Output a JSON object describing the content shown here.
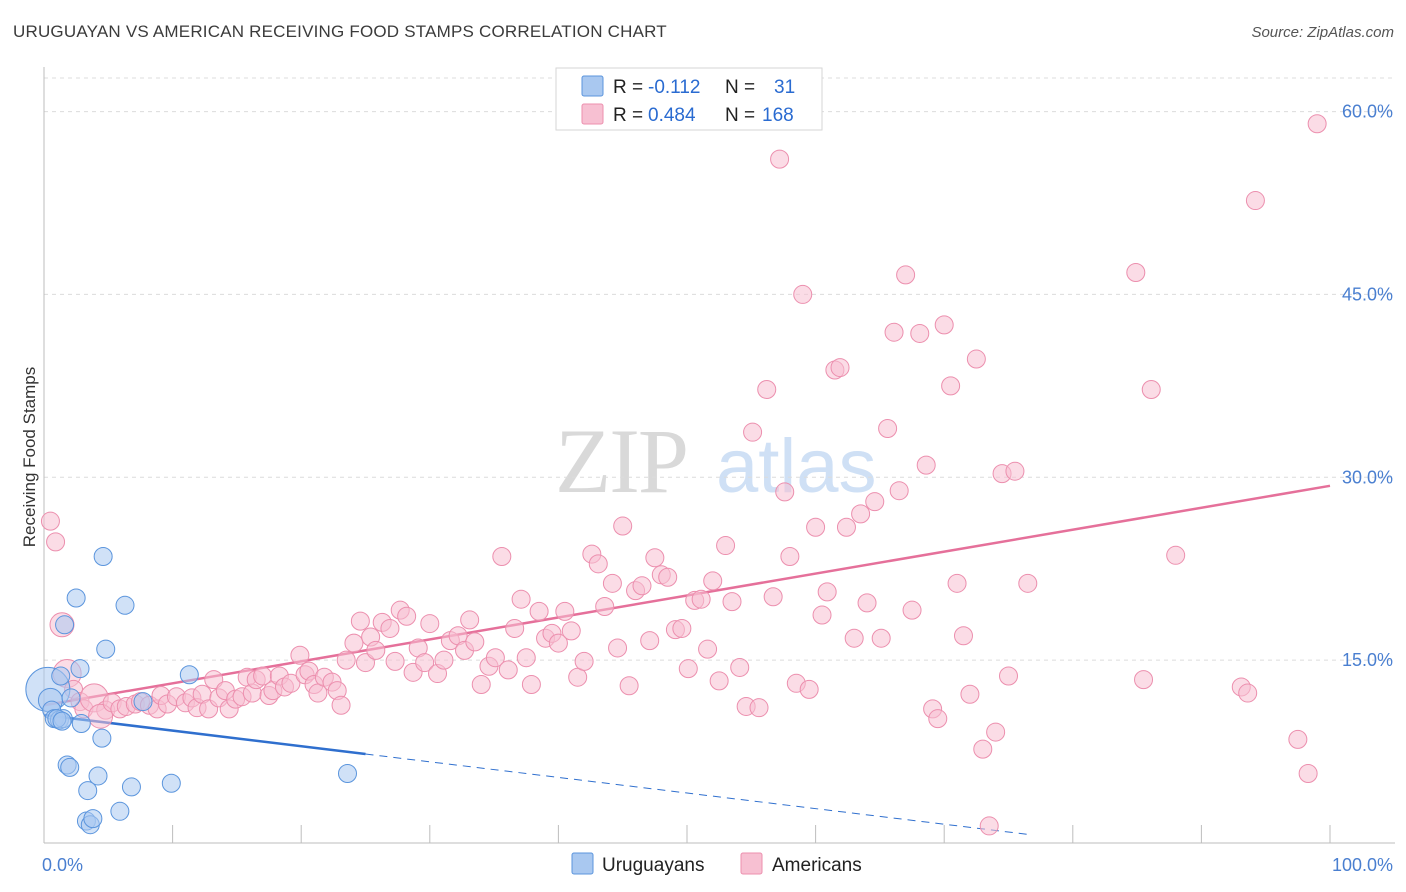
{
  "title": "URUGUAYAN VS AMERICAN RECEIVING FOOD STAMPS CORRELATION CHART",
  "source": "Source: ZipAtlas.com",
  "watermark": {
    "zip": "ZIP",
    "atlas": "atlas"
  },
  "colors": {
    "uruguayan_fill": "#a9c8f0",
    "uruguayan_stroke": "#5b95dd",
    "uruguayan_line": "#2f6fce",
    "american_fill": "#f7c0d2",
    "american_stroke": "#ec8fae",
    "american_line": "#e5709a",
    "tick_text": "#4a7fd0",
    "grid": "#dcdcdc"
  },
  "legend": {
    "rows": [
      {
        "r_label": "R =",
        "r_value": "-0.112",
        "n_label": "N =",
        "n_value": "31"
      },
      {
        "r_label": "R =",
        "r_value": "0.484",
        "n_label": "N =",
        "n_value": "168"
      }
    ]
  },
  "bottom_legend": {
    "uruguayans": "Uruguayans",
    "americans": "Americans"
  },
  "chart_data": {
    "type": "scatter",
    "title": "URUGUAYAN VS AMERICAN RECEIVING FOOD STAMPS CORRELATION CHART",
    "xlabel": "",
    "ylabel": "Receiving Food Stamps",
    "xlim": [
      0,
      100
    ],
    "ylim": [
      0,
      63
    ],
    "x_tick_labels": [
      "0.0%",
      "100.0%"
    ],
    "y_ticks": [
      15,
      30,
      45,
      60
    ],
    "y_tick_labels": [
      "15.0%",
      "30.0%",
      "45.0%",
      "60.0%"
    ],
    "grid": true,
    "legend_position": "top-center",
    "series": [
      {
        "name": "Uruguayans",
        "r": -0.112,
        "n": 31,
        "trend": {
          "x0": 0,
          "y0": 10.5,
          "x1": 100,
          "y1": -2.3,
          "solid_until_x": 25
        },
        "points": [
          [
            0.3,
            12.6,
            22
          ],
          [
            0.5,
            11.7,
            12
          ],
          [
            0.6,
            10.9,
            9
          ],
          [
            0.8,
            10.2,
            9
          ],
          [
            1.2,
            10.1,
            9
          ],
          [
            1.5,
            10.2,
            9
          ],
          [
            1.3,
            13.7,
            9
          ],
          [
            1.6,
            17.9,
            9
          ],
          [
            2.5,
            20.1,
            9
          ],
          [
            2.8,
            14.3,
            9
          ],
          [
            2.1,
            11.9,
            9
          ],
          [
            2.9,
            9.8,
            9
          ],
          [
            4.6,
            23.5,
            9
          ],
          [
            6.3,
            19.5,
            9
          ],
          [
            4.8,
            15.9,
            9
          ],
          [
            4.5,
            8.6,
            9
          ],
          [
            11.3,
            13.8,
            9
          ],
          [
            7.7,
            11.6,
            9
          ],
          [
            1.8,
            6.4,
            9
          ],
          [
            2.0,
            6.2,
            9
          ],
          [
            4.2,
            5.5,
            9
          ],
          [
            6.8,
            4.6,
            9
          ],
          [
            9.9,
            4.9,
            9
          ],
          [
            3.4,
            4.3,
            9
          ],
          [
            3.3,
            1.8,
            9
          ],
          [
            3.6,
            1.5,
            9
          ],
          [
            3.8,
            2.0,
            9
          ],
          [
            5.9,
            2.6,
            9
          ],
          [
            23.6,
            5.7,
            9
          ],
          [
            1.0,
            10.2,
            9
          ],
          [
            1.4,
            10.0,
            9
          ]
        ]
      },
      {
        "name": "Americans",
        "r": 0.484,
        "n": 168,
        "trend": {
          "x0": 0,
          "y0": 11.3,
          "x1": 100,
          "y1": 29.3
        },
        "points": [
          [
            0.5,
            26.4,
            9
          ],
          [
            0.9,
            24.7,
            9
          ],
          [
            1.4,
            17.9,
            12
          ],
          [
            1.8,
            13.9,
            14
          ],
          [
            2.3,
            12.6,
            9
          ],
          [
            2.8,
            11.6,
            9
          ],
          [
            3.1,
            11.0,
            9
          ],
          [
            3.9,
            11.9,
            14
          ],
          [
            4.8,
            10.9,
            9
          ],
          [
            4.4,
            10.4,
            12
          ],
          [
            5.3,
            11.5,
            9
          ],
          [
            5.9,
            11.0,
            9
          ],
          [
            6.4,
            11.2,
            9
          ],
          [
            7.1,
            11.4,
            9
          ],
          [
            7.5,
            11.6,
            9
          ],
          [
            8.2,
            11.3,
            9
          ],
          [
            8.8,
            11.0,
            9
          ],
          [
            9.1,
            12.1,
            9
          ],
          [
            9.6,
            11.4,
            9
          ],
          [
            10.3,
            12.0,
            9
          ],
          [
            11.0,
            11.5,
            9
          ],
          [
            11.5,
            11.9,
            9
          ],
          [
            11.9,
            11.1,
            9
          ],
          [
            12.3,
            12.2,
            9
          ],
          [
            12.8,
            11.0,
            9
          ],
          [
            13.2,
            13.4,
            9
          ],
          [
            13.6,
            11.9,
            9
          ],
          [
            14.1,
            12.5,
            9
          ],
          [
            14.4,
            11.0,
            9
          ],
          [
            14.9,
            11.8,
            9
          ],
          [
            15.4,
            12.0,
            9
          ],
          [
            15.8,
            13.6,
            9
          ],
          [
            16.2,
            12.3,
            9
          ],
          [
            16.5,
            13.4,
            9
          ],
          [
            17.0,
            13.7,
            9
          ],
          [
            17.5,
            12.1,
            9
          ],
          [
            17.8,
            12.5,
            9
          ],
          [
            18.3,
            13.7,
            9
          ],
          [
            18.7,
            12.8,
            9
          ],
          [
            19.2,
            13.1,
            9
          ],
          [
            19.9,
            15.4,
            9
          ],
          [
            20.3,
            13.8,
            9
          ],
          [
            20.6,
            14.1,
            9
          ],
          [
            21.0,
            13.0,
            9
          ],
          [
            21.3,
            12.3,
            9
          ],
          [
            21.8,
            13.6,
            9
          ],
          [
            22.4,
            13.2,
            9
          ],
          [
            22.8,
            12.5,
            9
          ],
          [
            23.1,
            11.3,
            9
          ],
          [
            23.5,
            15.0,
            9
          ],
          [
            24.1,
            16.4,
            9
          ],
          [
            24.6,
            18.2,
            9
          ],
          [
            25.0,
            14.8,
            9
          ],
          [
            25.4,
            16.9,
            9
          ],
          [
            25.8,
            15.8,
            9
          ],
          [
            26.3,
            18.1,
            9
          ],
          [
            26.9,
            17.6,
            9
          ],
          [
            27.3,
            14.9,
            9
          ],
          [
            27.7,
            19.1,
            9
          ],
          [
            28.2,
            18.6,
            9
          ],
          [
            28.7,
            14.0,
            9
          ],
          [
            29.1,
            16.0,
            9
          ],
          [
            29.6,
            14.8,
            9
          ],
          [
            30.0,
            18.0,
            9
          ],
          [
            30.6,
            13.9,
            9
          ],
          [
            31.1,
            15.0,
            9
          ],
          [
            31.6,
            16.6,
            9
          ],
          [
            32.2,
            17.0,
            9
          ],
          [
            32.7,
            15.8,
            9
          ],
          [
            33.1,
            18.3,
            9
          ],
          [
            33.5,
            16.5,
            9
          ],
          [
            34.0,
            13.0,
            9
          ],
          [
            34.6,
            14.5,
            9
          ],
          [
            35.1,
            15.2,
            9
          ],
          [
            35.6,
            23.5,
            9
          ],
          [
            36.1,
            14.2,
            9
          ],
          [
            36.6,
            17.6,
            9
          ],
          [
            37.1,
            20.0,
            9
          ],
          [
            37.5,
            15.2,
            9
          ],
          [
            37.9,
            13.0,
            9
          ],
          [
            38.5,
            19.0,
            9
          ],
          [
            39.0,
            16.8,
            9
          ],
          [
            39.5,
            17.2,
            9
          ],
          [
            40.0,
            16.4,
            9
          ],
          [
            40.5,
            19.0,
            9
          ],
          [
            41.0,
            17.4,
            9
          ],
          [
            41.5,
            13.6,
            9
          ],
          [
            42.0,
            14.9,
            9
          ],
          [
            42.6,
            23.7,
            9
          ],
          [
            43.1,
            22.9,
            9
          ],
          [
            43.6,
            19.4,
            9
          ],
          [
            44.2,
            21.3,
            9
          ],
          [
            44.6,
            16.0,
            9
          ],
          [
            45.0,
            26.0,
            9
          ],
          [
            45.5,
            12.9,
            9
          ],
          [
            46.0,
            20.7,
            9
          ],
          [
            46.5,
            21.1,
            9
          ],
          [
            47.1,
            16.6,
            9
          ],
          [
            47.5,
            23.4,
            9
          ],
          [
            48.0,
            22.0,
            9
          ],
          [
            48.5,
            21.8,
            9
          ],
          [
            49.1,
            17.5,
            9
          ],
          [
            49.6,
            17.6,
            9
          ],
          [
            50.1,
            14.3,
            9
          ],
          [
            50.6,
            19.9,
            9
          ],
          [
            51.1,
            20.0,
            9
          ],
          [
            51.6,
            15.9,
            9
          ],
          [
            52.0,
            21.5,
            9
          ],
          [
            52.5,
            13.3,
            9
          ],
          [
            53.0,
            24.4,
            9
          ],
          [
            53.5,
            19.8,
            9
          ],
          [
            54.1,
            14.4,
            9
          ],
          [
            54.6,
            11.2,
            9
          ],
          [
            55.1,
            33.7,
            9
          ],
          [
            55.6,
            11.1,
            9
          ],
          [
            56.2,
            37.2,
            9
          ],
          [
            56.7,
            20.2,
            9
          ],
          [
            57.2,
            56.1,
            9
          ],
          [
            57.6,
            28.8,
            9
          ],
          [
            58.0,
            23.5,
            9
          ],
          [
            58.5,
            13.1,
            9
          ],
          [
            59.0,
            45.0,
            9
          ],
          [
            59.5,
            12.6,
            9
          ],
          [
            60.0,
            25.9,
            9
          ],
          [
            60.5,
            18.7,
            9
          ],
          [
            60.9,
            20.6,
            9
          ],
          [
            61.5,
            38.8,
            9
          ],
          [
            61.9,
            39.0,
            9
          ],
          [
            62.4,
            25.9,
            9
          ],
          [
            63.0,
            16.8,
            9
          ],
          [
            63.5,
            27.0,
            9
          ],
          [
            64.0,
            19.7,
            9
          ],
          [
            64.6,
            28.0,
            9
          ],
          [
            65.1,
            16.8,
            9
          ],
          [
            65.6,
            34.0,
            9
          ],
          [
            66.1,
            41.9,
            9
          ],
          [
            66.5,
            28.9,
            9
          ],
          [
            67.0,
            46.6,
            9
          ],
          [
            67.5,
            19.1,
            9
          ],
          [
            68.1,
            41.8,
            9
          ],
          [
            68.6,
            31.0,
            9
          ],
          [
            69.1,
            11.0,
            9
          ],
          [
            69.5,
            10.2,
            9
          ],
          [
            70.0,
            42.5,
            9
          ],
          [
            70.5,
            37.5,
            9
          ],
          [
            71.0,
            21.3,
            9
          ],
          [
            71.5,
            17.0,
            9
          ],
          [
            72.0,
            12.2,
            9
          ],
          [
            72.5,
            39.7,
            9
          ],
          [
            73.0,
            7.7,
            9
          ],
          [
            73.5,
            1.4,
            9
          ],
          [
            74.0,
            9.1,
            9
          ],
          [
            74.5,
            30.3,
            9
          ],
          [
            75.0,
            13.7,
            9
          ],
          [
            75.5,
            30.5,
            9
          ],
          [
            76.5,
            21.3,
            9
          ],
          [
            84.9,
            46.8,
            9
          ],
          [
            85.5,
            13.4,
            9
          ],
          [
            86.1,
            37.2,
            9
          ],
          [
            88.0,
            23.6,
            9
          ],
          [
            93.1,
            12.8,
            9
          ],
          [
            93.6,
            12.3,
            9
          ],
          [
            94.2,
            52.7,
            9
          ],
          [
            97.5,
            8.5,
            9
          ],
          [
            98.3,
            5.7,
            9
          ],
          [
            99.0,
            59.0,
            9
          ]
        ]
      }
    ]
  }
}
